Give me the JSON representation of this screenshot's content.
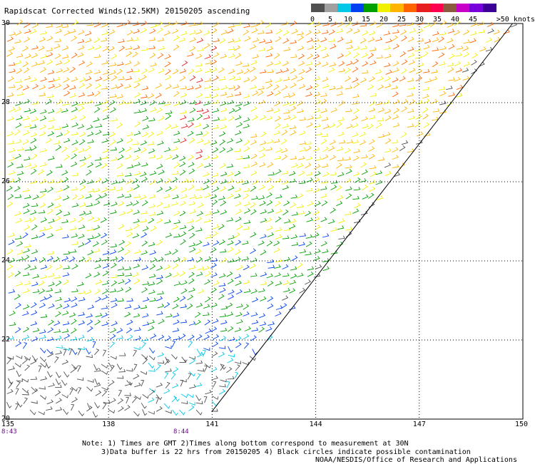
{
  "title": "Rapidscat Corrected Winds(12.5KM) 20150205 ascending",
  "legend": {
    "labels": [
      "0",
      "5",
      "10",
      "15",
      "20",
      "25",
      "30",
      "35",
      "40",
      "45",
      ">50 knots"
    ],
    "colors": [
      "#505050",
      "#a0a0a0",
      "#00c8e6",
      "#0040f0",
      "#00a000",
      "#f0f000",
      "#ffb400",
      "#ff6400",
      "#e61e1e",
      "#ff0050",
      "#8c5a3c",
      "#c800c8",
      "#7800dc",
      "#3c0096"
    ]
  },
  "map": {
    "lon_ticks": [
      "135",
      "138",
      "141",
      "144",
      "147",
      "150"
    ],
    "lat_ticks": [
      "30",
      "28",
      "26",
      "24",
      "22",
      "20"
    ],
    "lon_range": [
      135,
      150
    ],
    "lat_range": [
      20,
      30
    ],
    "grid": "dotted",
    "swath_edge": [
      [
        149.7,
        30
      ],
      [
        141,
        20.2
      ]
    ],
    "time_labels": [
      {
        "text": "8:43",
        "lon": 135
      },
      {
        "text": "8:44",
        "lon": 140
      }
    ]
  },
  "notes": {
    "line1": "Note: 1) Times are GMT 2)Times along bottom correspond to measurement at 30N",
    "line2": "3)Data buffer is 22 hrs from 20150205 4) Black circles indicate possible contamination",
    "credit": "NOAA/NESDIS/Office of Research and Applications"
  }
}
